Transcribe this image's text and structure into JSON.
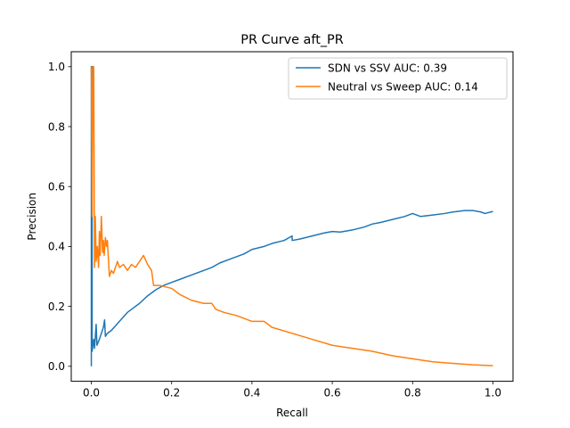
{
  "chart_data": {
    "type": "line",
    "title": "PR Curve aft_PR",
    "xlabel": "Recall",
    "ylabel": "Precision",
    "xlim": [
      -0.05,
      1.05
    ],
    "ylim": [
      -0.05,
      1.05
    ],
    "xticks": [
      0.0,
      0.2,
      0.4,
      0.6,
      0.8,
      1.0
    ],
    "yticks": [
      0.0,
      0.2,
      0.4,
      0.6,
      0.8,
      1.0
    ],
    "xtick_labels": [
      "0.0",
      "0.2",
      "0.4",
      "0.6",
      "0.8",
      "1.0"
    ],
    "ytick_labels": [
      "0.0",
      "0.2",
      "0.4",
      "0.6",
      "0.8",
      "1.0"
    ],
    "grid": false,
    "legend_position": "top-right",
    "series": [
      {
        "name": "SDN vs SSV AUC: 0.39",
        "color": "#1f77b4",
        "points": [
          [
            0.0,
            0.0
          ],
          [
            0.0,
            1.0
          ],
          [
            0.002,
            1.0
          ],
          [
            0.002,
            0.05
          ],
          [
            0.006,
            0.09
          ],
          [
            0.008,
            0.06
          ],
          [
            0.012,
            0.14
          ],
          [
            0.014,
            0.07
          ],
          [
            0.02,
            0.09
          ],
          [
            0.025,
            0.11
          ],
          [
            0.03,
            0.13
          ],
          [
            0.033,
            0.155
          ],
          [
            0.035,
            0.1
          ],
          [
            0.04,
            0.11
          ],
          [
            0.05,
            0.12
          ],
          [
            0.06,
            0.135
          ],
          [
            0.07,
            0.15
          ],
          [
            0.08,
            0.165
          ],
          [
            0.09,
            0.18
          ],
          [
            0.1,
            0.19
          ],
          [
            0.12,
            0.21
          ],
          [
            0.14,
            0.235
          ],
          [
            0.16,
            0.255
          ],
          [
            0.18,
            0.27
          ],
          [
            0.2,
            0.28
          ],
          [
            0.22,
            0.29
          ],
          [
            0.25,
            0.305
          ],
          [
            0.28,
            0.32
          ],
          [
            0.3,
            0.33
          ],
          [
            0.32,
            0.345
          ],
          [
            0.35,
            0.36
          ],
          [
            0.38,
            0.375
          ],
          [
            0.4,
            0.39
          ],
          [
            0.43,
            0.4
          ],
          [
            0.45,
            0.41
          ],
          [
            0.48,
            0.42
          ],
          [
            0.5,
            0.435
          ],
          [
            0.5,
            0.42
          ],
          [
            0.52,
            0.425
          ],
          [
            0.55,
            0.435
          ],
          [
            0.58,
            0.445
          ],
          [
            0.6,
            0.45
          ],
          [
            0.62,
            0.448
          ],
          [
            0.65,
            0.455
          ],
          [
            0.68,
            0.465
          ],
          [
            0.7,
            0.475
          ],
          [
            0.72,
            0.48
          ],
          [
            0.75,
            0.49
          ],
          [
            0.78,
            0.5
          ],
          [
            0.8,
            0.51
          ],
          [
            0.82,
            0.5
          ],
          [
            0.85,
            0.505
          ],
          [
            0.88,
            0.51
          ],
          [
            0.9,
            0.515
          ],
          [
            0.93,
            0.52
          ],
          [
            0.95,
            0.52
          ],
          [
            0.97,
            0.515
          ],
          [
            0.98,
            0.51
          ],
          [
            1.0,
            0.517
          ]
        ]
      },
      {
        "name": "Neutral vs Sweep AUC: 0.14",
        "color": "#ff7f0e",
        "points": [
          [
            0.0,
            1.0
          ],
          [
            0.002,
            0.5
          ],
          [
            0.004,
            1.0
          ],
          [
            0.006,
            1.0
          ],
          [
            0.008,
            0.33
          ],
          [
            0.01,
            0.5
          ],
          [
            0.012,
            0.35
          ],
          [
            0.015,
            0.4
          ],
          [
            0.018,
            0.33
          ],
          [
            0.02,
            0.45
          ],
          [
            0.022,
            0.37
          ],
          [
            0.025,
            0.5
          ],
          [
            0.028,
            0.38
          ],
          [
            0.03,
            0.42
          ],
          [
            0.032,
            0.37
          ],
          [
            0.035,
            0.43
          ],
          [
            0.038,
            0.4
          ],
          [
            0.04,
            0.42
          ],
          [
            0.045,
            0.3
          ],
          [
            0.05,
            0.32
          ],
          [
            0.055,
            0.31
          ],
          [
            0.06,
            0.33
          ],
          [
            0.065,
            0.35
          ],
          [
            0.07,
            0.33
          ],
          [
            0.08,
            0.34
          ],
          [
            0.09,
            0.32
          ],
          [
            0.1,
            0.34
          ],
          [
            0.11,
            0.33
          ],
          [
            0.12,
            0.35
          ],
          [
            0.13,
            0.37
          ],
          [
            0.14,
            0.34
          ],
          [
            0.15,
            0.32
          ],
          [
            0.155,
            0.27
          ],
          [
            0.17,
            0.27
          ],
          [
            0.2,
            0.26
          ],
          [
            0.22,
            0.24
          ],
          [
            0.25,
            0.22
          ],
          [
            0.28,
            0.21
          ],
          [
            0.3,
            0.21
          ],
          [
            0.31,
            0.19
          ],
          [
            0.33,
            0.18
          ],
          [
            0.36,
            0.17
          ],
          [
            0.4,
            0.15
          ],
          [
            0.43,
            0.15
          ],
          [
            0.45,
            0.13
          ],
          [
            0.5,
            0.11
          ],
          [
            0.55,
            0.09
          ],
          [
            0.6,
            0.07
          ],
          [
            0.65,
            0.06
          ],
          [
            0.7,
            0.05
          ],
          [
            0.75,
            0.035
          ],
          [
            0.8,
            0.025
          ],
          [
            0.85,
            0.015
          ],
          [
            0.9,
            0.01
          ],
          [
            0.95,
            0.005
          ],
          [
            1.0,
            0.002
          ]
        ]
      }
    ]
  }
}
